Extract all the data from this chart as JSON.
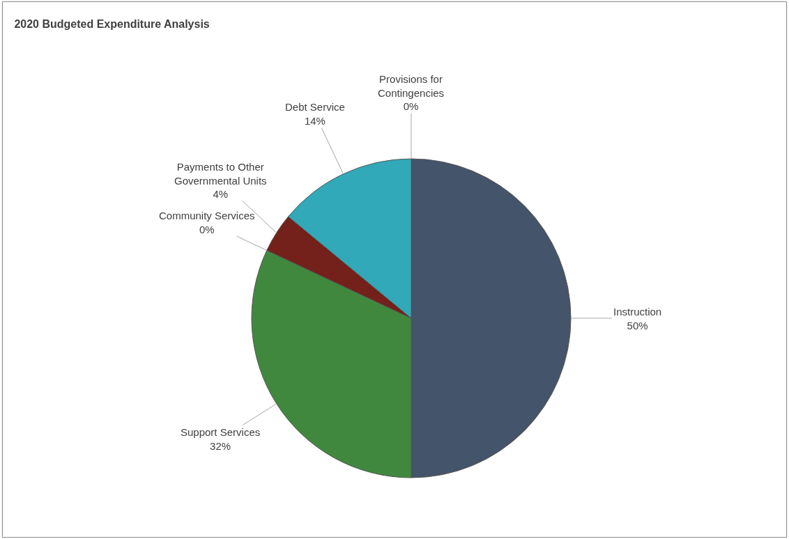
{
  "chart_data": {
    "type": "pie",
    "title": "2020 Budgeted Expenditure Analysis",
    "categories": [
      "Instruction",
      "Support Services",
      "Community Services",
      "Payments to Other Governmental Units",
      "Debt Service",
      "Provisions for Contingencies"
    ],
    "values": [
      50,
      32,
      0,
      4,
      14,
      0
    ],
    "value_labels": [
      "50%",
      "32%",
      "0%",
      "4%",
      "14%",
      "0%"
    ],
    "colors": [
      "#44546a",
      "#41883f",
      "#d08a1a",
      "#74201b",
      "#31a9b8",
      "#8c8c8c"
    ]
  }
}
